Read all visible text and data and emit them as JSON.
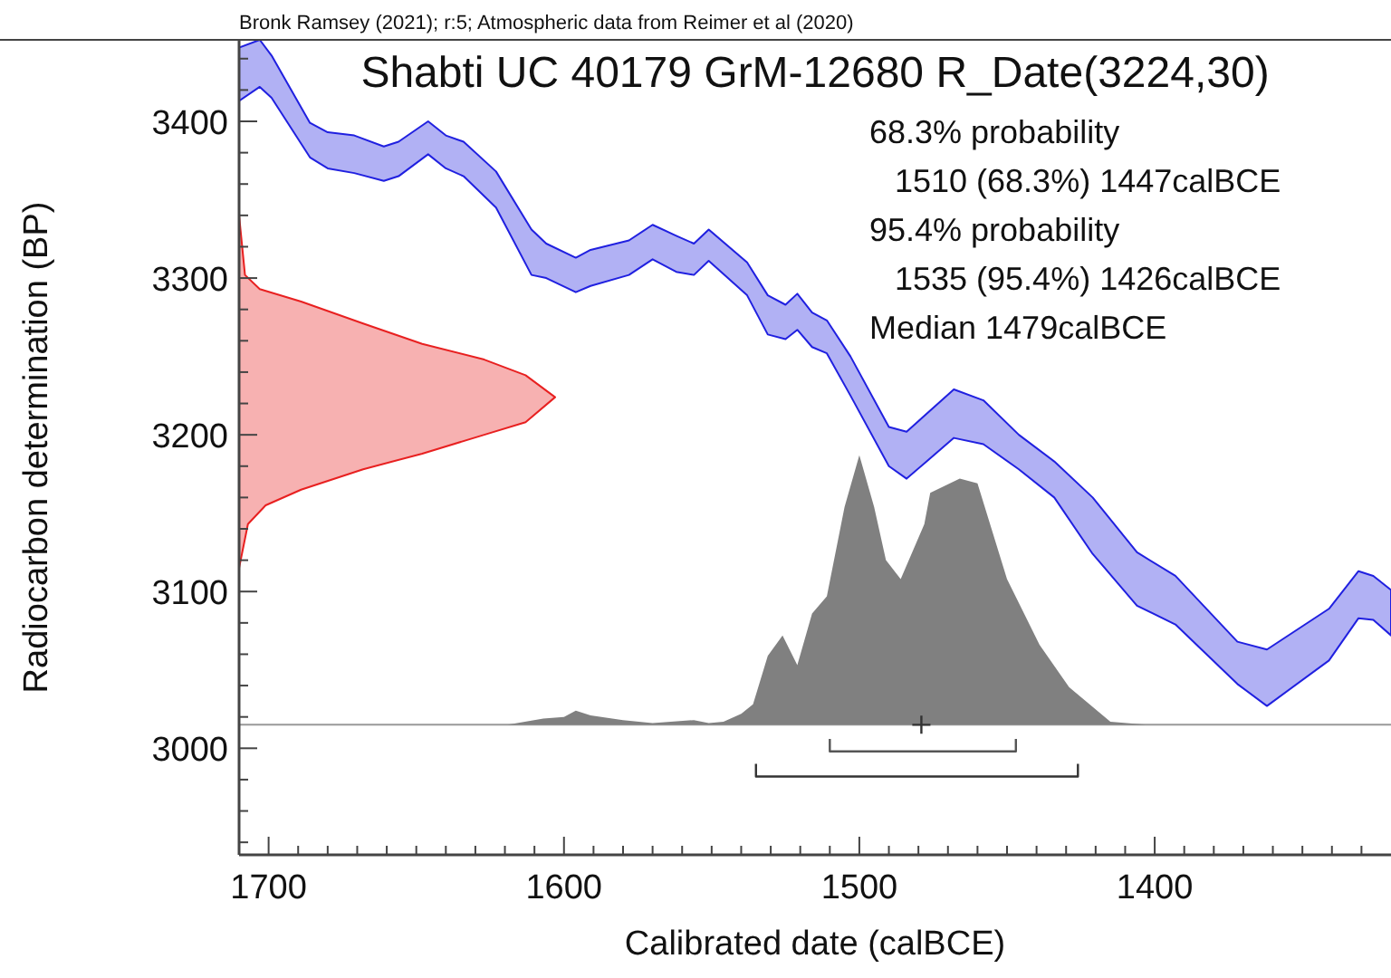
{
  "chart_data": {
    "type": "area",
    "title": "Shabti UC 40179 GrM-12680 R_Date(3224,30)",
    "xlabel": "Calibrated date (calBCE)",
    "ylabel": "Radiocarbon determination (BP)",
    "annotations": [
      "Bronk Ramsey (2021); r:5; Atmospheric data from Reimer et al (2020)",
      "68.3% probability",
      "1510 (68.3%) 1447calBCE",
      "95.4% probability",
      "1535 (95.4%) 1426calBCE",
      "Median 1479calBCE"
    ],
    "xlim": [
      1710,
      1320
    ],
    "ylim": [
      2932,
      3452
    ],
    "xticks": [
      {
        "value": 1710,
        "label": null
      },
      1700,
      {
        "value": 1690,
        "label": null
      },
      {
        "value": 1680,
        "label": null
      },
      {
        "value": 1670,
        "label": null
      },
      {
        "value": 1660,
        "label": null
      },
      {
        "value": 1650,
        "label": null
      },
      {
        "value": 1640,
        "label": null
      },
      {
        "value": 1630,
        "label": null
      },
      {
        "value": 1620,
        "label": null
      },
      {
        "value": 1610,
        "label": null
      },
      1600,
      {
        "value": 1590,
        "label": null
      },
      {
        "value": 1580,
        "label": null
      },
      {
        "value": 1570,
        "label": null
      },
      {
        "value": 1560,
        "label": null
      },
      {
        "value": 1550,
        "label": null
      },
      {
        "value": 1540,
        "label": null
      },
      {
        "value": 1530,
        "label": null
      },
      {
        "value": 1520,
        "label": null
      },
      {
        "value": 1510,
        "label": null
      },
      1500,
      {
        "value": 1490,
        "label": null
      },
      {
        "value": 1480,
        "label": null
      },
      {
        "value": 1470,
        "label": null
      },
      {
        "value": 1460,
        "label": null
      },
      {
        "value": 1450,
        "label": null
      },
      {
        "value": 1440,
        "label": null
      },
      {
        "value": 1430,
        "label": null
      },
      {
        "value": 1420,
        "label": null
      },
      {
        "value": 1410,
        "label": null
      },
      1400,
      {
        "value": 1390,
        "label": null
      },
      {
        "value": 1380,
        "label": null
      },
      {
        "value": 1370,
        "label": null
      },
      {
        "value": 1360,
        "label": null
      },
      {
        "value": 1350,
        "label": null
      },
      {
        "value": 1340,
        "label": null
      },
      {
        "value": 1330,
        "label": null
      }
    ],
    "yticks": [
      {
        "value": 2940,
        "label": null
      },
      {
        "value": 2960,
        "label": null
      },
      {
        "value": 2980,
        "label": null
      },
      3000,
      {
        "value": 3020,
        "label": null
      },
      {
        "value": 3040,
        "label": null
      },
      {
        "value": 3060,
        "label": null
      },
      {
        "value": 3080,
        "label": null
      },
      3100,
      {
        "value": 3120,
        "label": null
      },
      {
        "value": 3140,
        "label": null
      },
      {
        "value": 3160,
        "label": null
      },
      {
        "value": 3180,
        "label": null
      },
      3200,
      {
        "value": 3220,
        "label": null
      },
      {
        "value": 3240,
        "label": null
      },
      {
        "value": 3260,
        "label": null
      },
      {
        "value": 3280,
        "label": null
      },
      3300,
      {
        "value": 3320,
        "label": null
      },
      {
        "value": 3340,
        "label": null
      },
      {
        "value": 3360,
        "label": null
      },
      {
        "value": 3380,
        "label": null
      },
      3400,
      {
        "value": 3420,
        "label": null
      },
      {
        "value": 3440,
        "label": null
      }
    ],
    "grid": false,
    "ref_lines": [
      {
        "axis": "y",
        "value": 3015,
        "color": "#999999"
      }
    ],
    "series": [
      {
        "type": "line",
        "color": "#2020e0",
        "x": [
          1710,
          1703,
          1699,
          1686,
          1680,
          1671,
          1661,
          1656,
          1646,
          1640,
          1634,
          1623,
          1611,
          1606,
          1596,
          1591,
          1578,
          1570,
          1562,
          1556,
          1551,
          1538,
          1531,
          1525,
          1521,
          1516,
          1511,
          1503,
          1490,
          1484,
          1468,
          1458,
          1446,
          1434,
          1421,
          1406,
          1393,
          1372,
          1362,
          1341,
          1331,
          1326,
          1320,
          1320,
          1326,
          1331,
          1341,
          1362,
          1372,
          1393,
          1406,
          1421,
          1434,
          1446,
          1458,
          1468,
          1484,
          1490,
          1503,
          1511,
          1516,
          1521,
          1525,
          1531,
          1538,
          1551,
          1556,
          1562,
          1570,
          1578,
          1591,
          1596,
          1606,
          1611,
          1623,
          1634,
          1640,
          1646,
          1656,
          1661,
          1671,
          1680,
          1686,
          1699,
          1703,
          1710
        ],
        "values": [
          3447,
          3452,
          3442,
          3399,
          3393,
          3391,
          3384,
          3387,
          3400,
          3391,
          3387,
          3368,
          3331,
          3322,
          3313,
          3318,
          3324,
          3334,
          3327,
          3322,
          3331,
          3310,
          3289,
          3283,
          3290,
          3278,
          3273,
          3250,
          3205,
          3202,
          3229,
          3222,
          3200,
          3183,
          3160,
          3125,
          3110,
          3068,
          3063,
          3089,
          3113,
          3110,
          3101,
          3072,
          3082,
          3083,
          3056,
          3027,
          3041,
          3079,
          3091,
          3124,
          3160,
          3178,
          3194,
          3198,
          3172,
          3180,
          3225,
          3252,
          3256,
          3267,
          3261,
          3264,
          3289,
          3311,
          3302,
          3304,
          3312,
          3302,
          3295,
          3291,
          3300,
          3302,
          3345,
          3365,
          3370,
          3379,
          3365,
          3362,
          3367,
          3370,
          3377,
          3415,
          3422,
          3413
        ]
      },
      {
        "type": "line",
        "color": "#e82020",
        "x": [
          1710,
          1708,
          1703,
          1689,
          1668,
          1648,
          1627,
          1613,
          1603,
          1613,
          1627,
          1648,
          1668,
          1689,
          1701,
          1707,
          1710
        ],
        "values": [
          3340,
          3302,
          3293,
          3285,
          3271,
          3258,
          3248,
          3238,
          3224,
          3208,
          3200,
          3188,
          3178,
          3165,
          3155,
          3143,
          3115
        ]
      },
      {
        "color": "#808080",
        "x": [
          1619,
          1607,
          1600,
          1596,
          1591,
          1580,
          1570,
          1556,
          1551,
          1546,
          1540,
          1536,
          1531,
          1526,
          1521,
          1516,
          1511,
          1505,
          1500,
          1495,
          1491,
          1486,
          1478,
          1476,
          1466,
          1460,
          1450,
          1439,
          1429,
          1415,
          1403
        ],
        "values": [
          3015,
          3019,
          3020,
          3024,
          3021,
          3018,
          3016,
          3018,
          3016,
          3017,
          3022,
          3028,
          3059,
          3072,
          3053,
          3086,
          3097,
          3154,
          3187,
          3154,
          3120,
          3108,
          3143,
          3163,
          3172,
          3169,
          3108,
          3066,
          3039,
          3017,
          3015
        ]
      },
      {
        "type": "scatter",
        "marker": "cross",
        "color": "#333333",
        "x": [
          1479
        ],
        "values": [
          3015
        ]
      },
      {
        "type": "line",
        "color": "#555555",
        "x": [
          1510,
          1510,
          1447,
          1447
        ],
        "values": [
          3006,
          2998,
          2998,
          3006
        ]
      },
      {
        "type": "line",
        "color": "#333333",
        "x": [
          1535,
          1535,
          1426,
          1426
        ],
        "values": [
          2990,
          2982,
          2982,
          2990
        ]
      }
    ]
  }
}
